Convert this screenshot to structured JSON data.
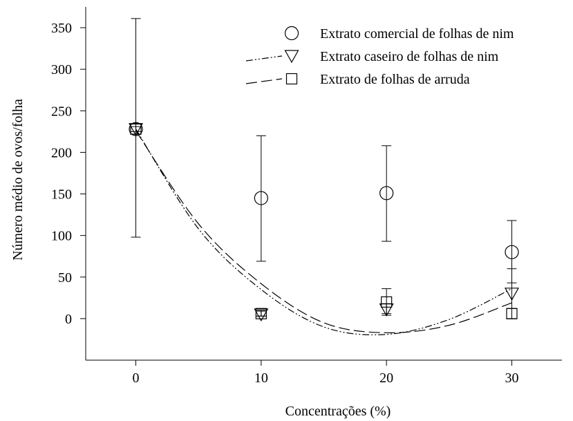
{
  "chart_data": {
    "type": "scatter",
    "xlabel": "Concentrações (%)",
    "ylabel": "Número médio de ovos/folha",
    "xlim": [
      -4,
      34
    ],
    "ylim": [
      -50,
      375
    ],
    "x_ticks": [
      0,
      10,
      20,
      30
    ],
    "y_ticks": [
      0,
      50,
      100,
      150,
      200,
      250,
      300,
      350
    ],
    "grid": false,
    "legend_position": "top-right",
    "series": [
      {
        "name": "Extrato comercial de folhas de nim",
        "marker": "circle",
        "line_style": "none",
        "x": [
          0,
          10,
          20,
          30
        ],
        "y": [
          228,
          145,
          151,
          80
        ],
        "err_low": [
          98,
          69,
          93,
          43
        ],
        "err_high": [
          361,
          220,
          208,
          118
        ]
      },
      {
        "name": "Extrato caseiro de folhas de nim",
        "marker": "triangle-down",
        "line_style": "dash-dot-dot",
        "x": [
          0,
          10,
          20,
          30
        ],
        "y": [
          228,
          5,
          11,
          30
        ],
        "err_low": [
          225,
          3,
          4,
          0
        ],
        "err_high": [
          231,
          9,
          18,
          60
        ],
        "fit_curve": {
          "x": [
            0,
            5,
            10,
            15,
            20,
            25,
            30
          ],
          "y": [
            228,
            108,
            35,
            -10,
            -19,
            -1,
            36
          ]
        }
      },
      {
        "name": "Extrato de folhas de arruda",
        "marker": "square",
        "line_style": "long-dash",
        "x": [
          0,
          10,
          20,
          30
        ],
        "y": [
          228,
          6,
          20,
          6
        ],
        "err_low": [
          222,
          3,
          6,
          0
        ],
        "err_high": [
          234,
          10,
          36,
          12
        ],
        "fit_curve": {
          "x": [
            0,
            5,
            10,
            15,
            20,
            25,
            30
          ],
          "y": [
            226,
            114,
            42,
            -5,
            -17,
            -8,
            19
          ]
        }
      }
    ]
  }
}
